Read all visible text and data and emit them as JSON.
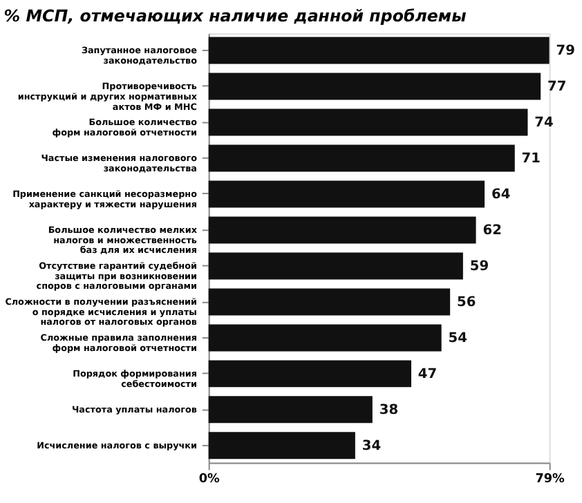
{
  "chart_data": {
    "type": "bar",
    "orientation": "horizontal",
    "title": "% МСП, отмечающих наличие данной проблемы",
    "categories": [
      "Запутанное налоговое\nзаконодательство",
      "Противоречивость\nинструкций и других нормативных\nактов МФ и МНС",
      "Большое количество\nформ налоговой отчетности",
      "Частые изменения налогового\nзаконодательства",
      "Применение санкций несоразмерно\nхарактеру и тяжести нарушения",
      "Большое количество мелких\nналогов и множественность\nбаз для их исчисления",
      "Отсутствие гарантий судебной\nзащиты при возникновении\nспоров с налоговыми органами",
      "Сложности в получении разъяснений\nо порядке исчисления и уплаты\nналогов от налоговых органов",
      "Сложные правила заполнения\nформ налоговой отчетности",
      "Порядок формирования\nсебестоимости",
      "Частота уплаты налогов",
      "Исчисление налогов с выручки"
    ],
    "values": [
      79,
      77,
      74,
      71,
      64,
      62,
      59,
      56,
      54,
      47,
      38,
      34
    ],
    "color": "#111111",
    "data_labels": true,
    "xlim": [
      0,
      79
    ],
    "xticks": [
      {
        "value": 0,
        "label": "0%"
      },
      {
        "value": 79,
        "label": "79%"
      }
    ]
  }
}
